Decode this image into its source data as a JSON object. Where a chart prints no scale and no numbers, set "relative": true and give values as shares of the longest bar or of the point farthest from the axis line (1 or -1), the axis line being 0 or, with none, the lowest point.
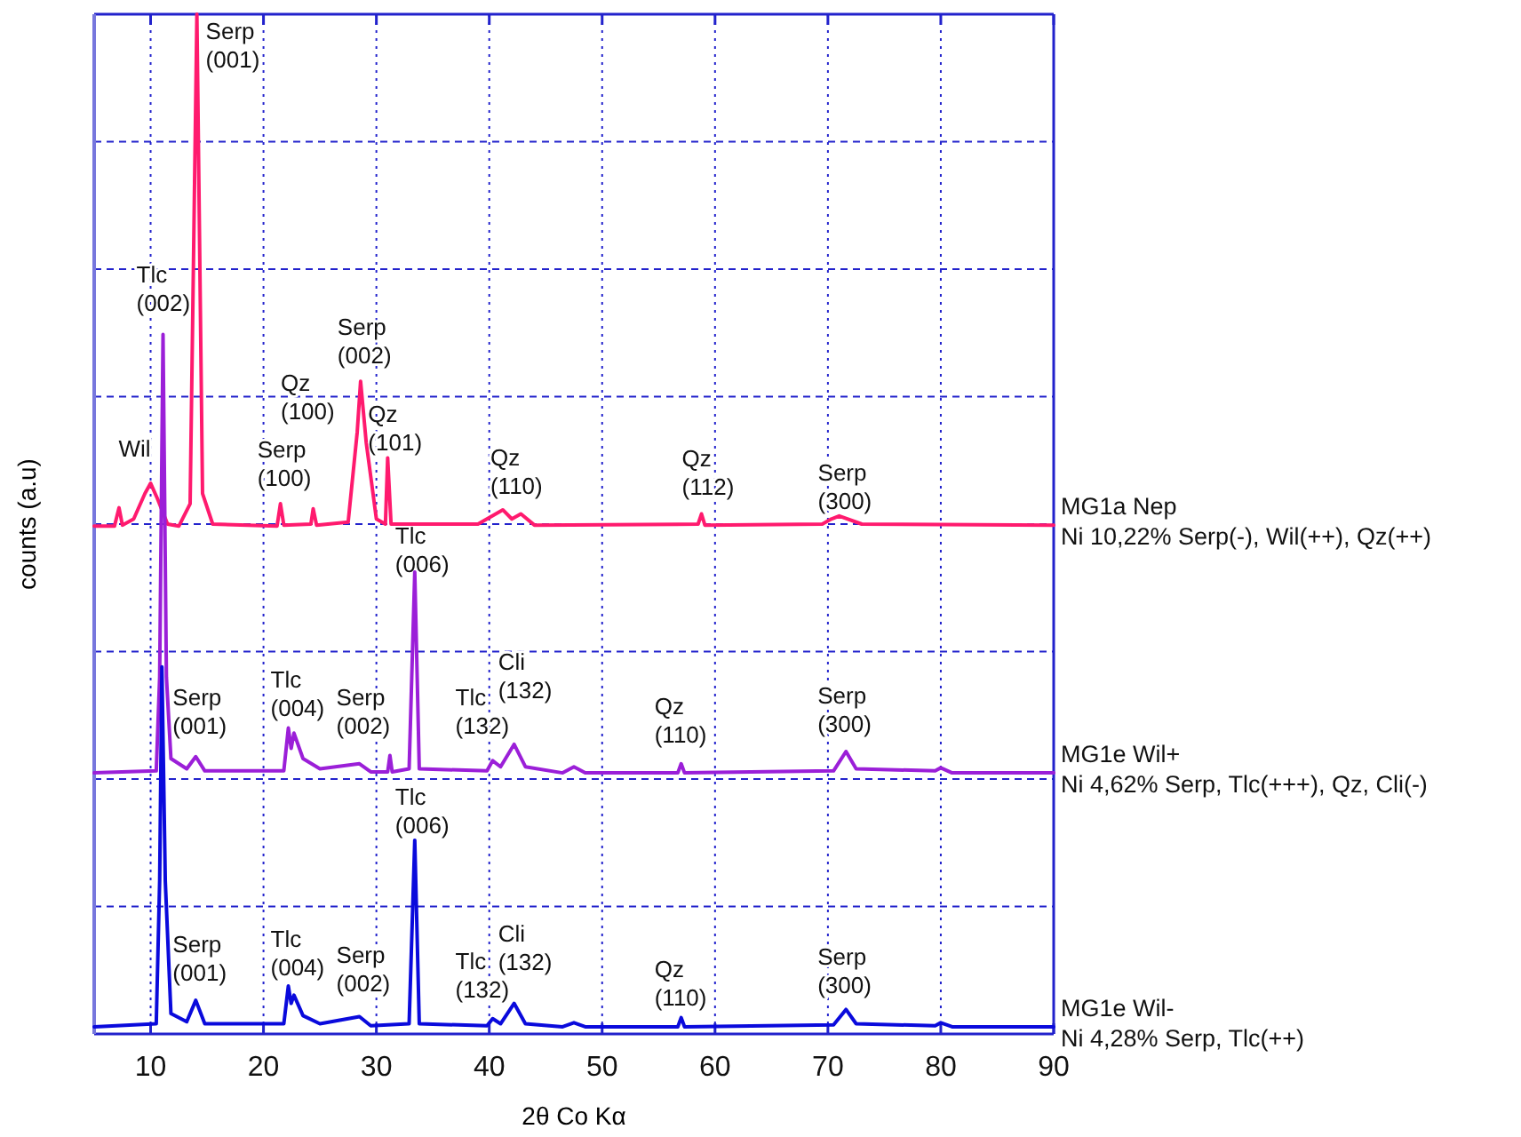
{
  "chart_data": {
    "type": "line",
    "relative": true,
    "xlabel": "2θ Co Kα",
    "ylabel": "counts (a.u)",
    "xlim": [
      5,
      90
    ],
    "xticks": [
      10,
      20,
      30,
      40,
      50,
      60,
      70,
      80,
      90
    ],
    "grid": true,
    "legend": false,
    "line_style": "solid",
    "marker": "none",
    "series": [
      {
        "name": "MG1a Nep\nNi 10,22%  Serp(-), Wil(++), Qz(++)",
        "color": "#ff1a6e",
        "x": [
          5,
          6.8,
          7.2,
          7.5,
          8.5,
          9.5,
          10,
          10.6,
          11.5,
          12.5,
          13.5,
          14.1,
          14.6,
          15.5,
          21.2,
          21.5,
          21.8,
          24.2,
          24.4,
          24.7,
          27.5,
          28.3,
          28.6,
          29.1,
          30,
          30.8,
          31,
          31.3,
          39,
          41.2,
          42,
          42.8,
          44,
          58.5,
          58.8,
          59.1,
          69.5,
          70.3,
          71,
          73,
          90
        ],
        "values": [
          0.498,
          0.498,
          0.516,
          0.499,
          0.505,
          0.53,
          0.54,
          0.525,
          0.5,
          0.498,
          0.52,
          1.0,
          0.53,
          0.5,
          0.498,
          0.52,
          0.499,
          0.5,
          0.515,
          0.499,
          0.502,
          0.59,
          0.64,
          0.58,
          0.505,
          0.5,
          0.565,
          0.5,
          0.5,
          0.514,
          0.505,
          0.51,
          0.499,
          0.5,
          0.51,
          0.499,
          0.5,
          0.505,
          0.508,
          0.5,
          0.499
        ]
      },
      {
        "name": "MG1e Wil+\nNi 4,62%  Serp, Tlc(+++), Qz, Cli(-)",
        "color": "#9b1fd8",
        "x": [
          5,
          10.5,
          10.8,
          11.1,
          11.4,
          11.8,
          13.2,
          14,
          14.8,
          21.8,
          22.2,
          22.45,
          22.7,
          23.5,
          25,
          28.5,
          29.5,
          31,
          31.2,
          31.4,
          32.9,
          33.4,
          33.8,
          39.8,
          40.3,
          41,
          42.2,
          43.2,
          46.5,
          47.5,
          48.5,
          56.7,
          57,
          57.3,
          70.5,
          71.6,
          72.5,
          79.5,
          80,
          81,
          90
        ],
        "values": [
          0.256,
          0.258,
          0.35,
          0.686,
          0.35,
          0.27,
          0.26,
          0.272,
          0.258,
          0.258,
          0.3,
          0.28,
          0.295,
          0.27,
          0.26,
          0.265,
          0.257,
          0.257,
          0.273,
          0.257,
          0.26,
          0.453,
          0.26,
          0.258,
          0.268,
          0.262,
          0.284,
          0.262,
          0.256,
          0.262,
          0.256,
          0.256,
          0.265,
          0.256,
          0.258,
          0.277,
          0.26,
          0.258,
          0.261,
          0.256,
          0.256
        ]
      },
      {
        "name": "MG1e Wil-\nNi 4,28%  Serp, Tlc(++)",
        "color": "#0a0adc",
        "x": [
          5,
          10.5,
          10.8,
          11,
          11.3,
          11.8,
          13.2,
          14,
          14.8,
          21.8,
          22.2,
          22.45,
          22.7,
          23.5,
          25,
          28.5,
          29.5,
          32.9,
          33.4,
          33.8,
          39.8,
          40.3,
          41,
          42.2,
          43.2,
          46.5,
          47.5,
          48.5,
          56.7,
          57,
          57.3,
          70.5,
          71.6,
          72.5,
          79.5,
          80,
          81,
          90
        ],
        "values": [
          0.007,
          0.01,
          0.15,
          0.36,
          0.15,
          0.02,
          0.012,
          0.033,
          0.01,
          0.01,
          0.047,
          0.03,
          0.038,
          0.018,
          0.01,
          0.017,
          0.008,
          0.01,
          0.19,
          0.01,
          0.008,
          0.015,
          0.01,
          0.03,
          0.01,
          0.007,
          0.011,
          0.007,
          0.007,
          0.016,
          0.007,
          0.009,
          0.024,
          0.01,
          0.008,
          0.011,
          0.007,
          0.007
        ]
      }
    ],
    "annotations": [
      {
        "text": "Serp\n(001)",
        "x": 14.1,
        "y": 1.0
      },
      {
        "text": "Tlc\n(002)",
        "x": 11.1,
        "y": 0.686
      },
      {
        "text": "Wil",
        "x": 10,
        "y": 0.54
      },
      {
        "text": "Serp\n(002)",
        "x": 28.6,
        "y": 0.64
      },
      "Qz\n(100)",
      {
        "text": "Qz\n(101)",
        "x": 31,
        "y": 0.565
      },
      {
        "text": "Serp\n(100)",
        "x": 21.5,
        "y": 0.52
      },
      {
        "text": "Qz\n(110)",
        "x": 41.2,
        "y": 0.514
      },
      {
        "text": "Qz\n(112)",
        "x": 58.8,
        "y": 0.51
      },
      {
        "text": "Serp\n(300)",
        "x": 71,
        "y": 0.508
      },
      {
        "text": "Tlc\n(006)",
        "x": 33.4,
        "y": 0.453
      },
      {
        "text": "Serp\n(001)",
        "x": 14,
        "y": 0.272
      },
      {
        "text": "Tlc\n(004)",
        "x": 22.2,
        "y": 0.3
      },
      {
        "text": "Serp\n(002)",
        "x": 28.5,
        "y": 0.265
      },
      {
        "text": "Tlc\n(132)",
        "x": 40.3,
        "y": 0.268
      },
      {
        "text": "Cli\n(132)",
        "x": 42.2,
        "y": 0.284
      },
      {
        "text": "Qz\n(110)",
        "x": 57,
        "y": 0.265
      },
      {
        "text": "Serp\n(300)",
        "x": 71.6,
        "y": 0.277
      },
      {
        "text": "Tlc\n(006)",
        "x": 33.4,
        "y": 0.19
      },
      {
        "text": "Serp\n(001)",
        "x": 14,
        "y": 0.033
      },
      {
        "text": "Tlc\n(004)",
        "x": 22.2,
        "y": 0.047
      },
      {
        "text": "Serp\n(002)",
        "x": 28.5,
        "y": 0.017
      },
      {
        "text": "Tlc\n(132)",
        "x": 40.3,
        "y": 0.015
      },
      {
        "text": "Cli\n(132)",
        "x": 42.2,
        "y": 0.03
      },
      {
        "text": "Qz\n(110)",
        "x": 57,
        "y": 0.016
      },
      {
        "text": "Serp\n(300)",
        "x": 71.6,
        "y": 0.024
      }
    ]
  }
}
